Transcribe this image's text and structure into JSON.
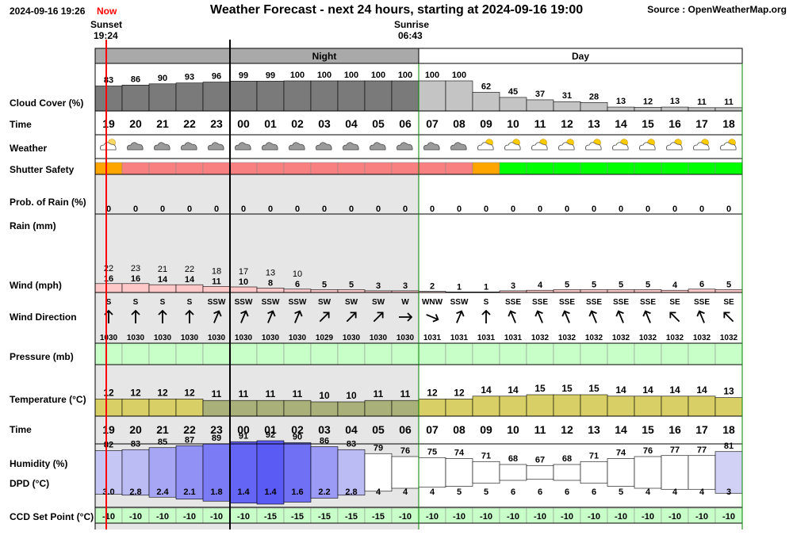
{
  "header": {
    "datetime": "2024-09-16 19:26",
    "now_label": "Now",
    "title": "Weather Forecast - next 24 hours, starting at 2024-09-16 19:00",
    "source": "Source : OpenWeatherMap.org",
    "sunset_label": "Sunset",
    "sunset_time": "19:24",
    "sunrise_label": "Sunrise",
    "sunrise_time": "06:43"
  },
  "labels": {
    "cloud": "Cloud Cover (%)",
    "time": "Time",
    "weather": "Weather",
    "shutter": "Shutter Safety",
    "rainprob": "Prob. of Rain (%)",
    "rain": "Rain (mm)",
    "wind": "Wind (mph)",
    "winddir": "Wind Direction",
    "pressure": "Pressure (mb)",
    "temp": "Temperature (°C)",
    "time2": "Time",
    "humidity": "Humidity (%)",
    "dpd": "DPD (°C)",
    "ccd": "CCD Set Point (°C)"
  },
  "chart_data": {
    "type": "table",
    "bands": [
      "Night",
      "Day"
    ],
    "hours": [
      "19",
      "20",
      "21",
      "22",
      "23",
      "00",
      "01",
      "02",
      "03",
      "04",
      "05",
      "06",
      "07",
      "08",
      "09",
      "10",
      "11",
      "12",
      "13",
      "14",
      "15",
      "16",
      "17",
      "18"
    ],
    "is_night": [
      true,
      true,
      true,
      true,
      true,
      true,
      true,
      true,
      true,
      true,
      true,
      true,
      false,
      false,
      false,
      false,
      false,
      false,
      false,
      false,
      false,
      false,
      false,
      false
    ],
    "cloud_cover": [
      83,
      86,
      90,
      93,
      96,
      99,
      99,
      100,
      100,
      100,
      100,
      100,
      100,
      100,
      62,
      45,
      37,
      31,
      28,
      13,
      12,
      13,
      11,
      11
    ],
    "weather_icons": [
      "partly-cloudy-night-icon",
      "cloud-icon",
      "cloud-icon",
      "cloud-icon",
      "cloud-icon",
      "cloud-icon",
      "cloud-icon",
      "cloud-icon",
      "cloud-icon",
      "cloud-icon",
      "cloud-icon",
      "cloud-icon",
      "cloud-icon",
      "cloud-icon",
      "partly-cloudy-day-icon",
      "partly-cloudy-day-icon",
      "partly-cloudy-day-icon",
      "partly-cloudy-day-icon",
      "partly-cloudy-day-icon",
      "partly-cloudy-day-icon",
      "partly-cloudy-day-icon",
      "partly-cloudy-day-icon",
      "partly-cloudy-day-icon",
      "partly-cloudy-day-icon"
    ],
    "shutter_safety": [
      "caution",
      "unsafe",
      "unsafe",
      "unsafe",
      "unsafe",
      "unsafe",
      "unsafe",
      "unsafe",
      "unsafe",
      "unsafe",
      "unsafe",
      "unsafe",
      "unsafe",
      "unsafe",
      "caution",
      "safe",
      "safe",
      "safe",
      "safe",
      "safe",
      "safe",
      "safe",
      "safe",
      "safe"
    ],
    "rain_probability": [
      0,
      0,
      0,
      0,
      0,
      0,
      0,
      0,
      0,
      0,
      0,
      0,
      0,
      0,
      0,
      0,
      0,
      0,
      0,
      0,
      0,
      0,
      0,
      0
    ],
    "wind_gust": [
      22,
      23,
      21,
      22,
      18,
      17,
      13,
      10,
      null,
      null,
      null,
      null,
      null,
      null,
      null,
      null,
      null,
      null,
      null,
      null,
      null,
      null,
      null,
      null
    ],
    "wind_speed": [
      16,
      16,
      14,
      14,
      11,
      10,
      8,
      6,
      5,
      5,
      3,
      3,
      2,
      1,
      1,
      3,
      4,
      5,
      5,
      5,
      5,
      4,
      6,
      5
    ],
    "wind_direction": [
      "S",
      "S",
      "S",
      "S",
      "SSW",
      "SSW",
      "SSW",
      "SSW",
      "SW",
      "SW",
      "SW",
      "W",
      "WNW",
      "SSW",
      "S",
      "SSE",
      "SSE",
      "SSE",
      "SSE",
      "SSE",
      "SSE",
      "SE",
      "SSE",
      "SE"
    ],
    "pressure": [
      1030,
      1030,
      1030,
      1030,
      1030,
      1030,
      1030,
      1030,
      1029,
      1030,
      1030,
      1030,
      1031,
      1031,
      1031,
      1031,
      1032,
      1032,
      1032,
      1032,
      1032,
      1032,
      1032,
      1032
    ],
    "temperature": [
      12,
      12,
      12,
      12,
      11,
      11,
      11,
      11,
      10,
      10,
      11,
      11,
      12,
      12,
      14,
      14,
      15,
      15,
      15,
      14,
      14,
      14,
      14,
      13
    ],
    "humidity": [
      82,
      83,
      85,
      87,
      89,
      91,
      92,
      90,
      86,
      83,
      79,
      76,
      75,
      74,
      71,
      68,
      67,
      68,
      71,
      74,
      76,
      77,
      77,
      81
    ],
    "dpd": [
      3.0,
      2.8,
      2.4,
      2.1,
      1.8,
      1.4,
      1.4,
      1.6,
      2.2,
      2.8,
      4,
      4,
      4,
      5,
      5,
      6,
      6,
      6,
      6,
      5,
      4,
      4,
      4,
      3
    ],
    "ccd_set_point": [
      -10,
      -10,
      -10,
      -10,
      -10,
      -10,
      -15,
      -15,
      -15,
      -15,
      -15,
      -10,
      -10,
      -10,
      -10,
      -10,
      -10,
      -10,
      -10,
      -10,
      -10,
      -10,
      -10,
      -10
    ],
    "colors": {
      "night_band": "#a9a9a9",
      "night_background": "#e6e6e6",
      "cloud_night": "#7a7a7a",
      "cloud_day": "#c4c4c4",
      "shutter_unsafe": "#f88080",
      "shutter_caution": "#ffa500",
      "shutter_safe": "#00ff00",
      "wind_bar": "#ffc8c8",
      "pressure": "#c8ffc8",
      "temperature_warm": "#d8cf66",
      "temperature_cool": "#aab07a",
      "humidity_high": "#5a5af0",
      "ccd": "#c8ffc8",
      "now_line": "#ff0000",
      "grid_border": "#008000"
    }
  }
}
